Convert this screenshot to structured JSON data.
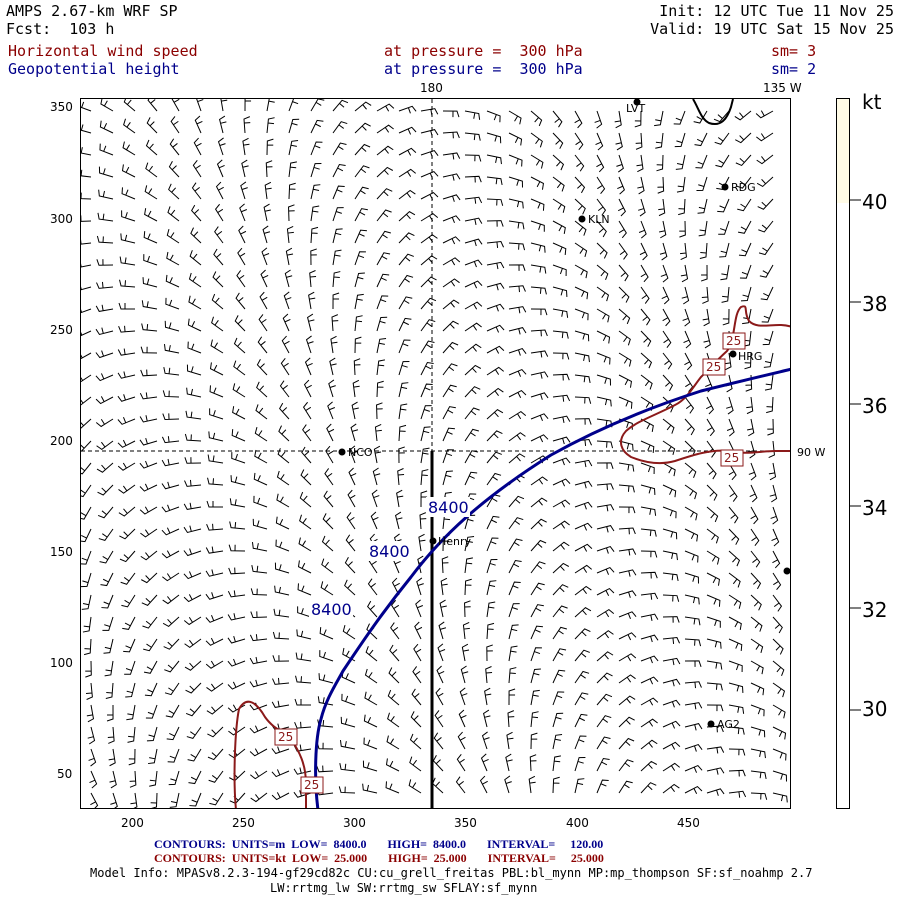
{
  "header": {
    "model": "AMPS 2.67-km WRF SP",
    "forecast": "Fcst:  103 h",
    "init": "Init: 12 UTC Tue 11 Nov 25",
    "valid": "Valid: 19 UTC Sat 15 Nov 25",
    "field1_name": "Horizontal wind speed",
    "field1_level": "at pressure =  300 hPa",
    "field1_sm": "sm= 3",
    "field2_name": "Geopotential height",
    "field2_level": "at pressure =  300 hPa",
    "field2_sm": "sm= 2"
  },
  "map": {
    "meridian_180": "180",
    "meridian_135w": "135 W",
    "meridian_90w": "90 W",
    "x_ticks": [
      "200",
      "250",
      "300",
      "350",
      "400",
      "450"
    ],
    "y_ticks": [
      "350",
      "300",
      "250",
      "200",
      "150",
      "100",
      "50"
    ],
    "stations": [
      {
        "label": "LVT",
        "dot": true
      },
      {
        "label": "RDG",
        "dot": true
      },
      {
        "label": "KLN",
        "dot": true
      },
      {
        "label": "HRG",
        "dot": true
      },
      {
        "label": "NCO",
        "dot": true
      },
      {
        "label": "Henry",
        "dot": true
      },
      {
        "label": "AG2",
        "dot": true
      },
      {
        "label": "",
        "dot": true
      }
    ],
    "height_contour_label": "8400",
    "speed_contour_label": "25",
    "height_contour_color": "#00008b",
    "speed_contour_color": "#8b1a1a"
  },
  "colorbar": {
    "unit": "kt",
    "ticks": [
      "40",
      "38",
      "36",
      "34",
      "32",
      "30"
    ],
    "fill_color": "#fffbe6",
    "filled_above_value": 40
  },
  "footer": {
    "contours1": "CONTOURS:  UNITS=m  LOW=  8400.0       HIGH=  8400.0       INTERVAL=     120.00",
    "contours2": "CONTOURS:  UNITS=kt  LOW=  25.000       HIGH=  25.000       INTERVAL=     25.000",
    "model_info": "Model Info: MPASv8.2.3-194-gf29cd82c CU:cu_grell_freitas PBL:bl_mynn MP:mp_thompson SF:sf_noahmp 2.7",
    "model_info2": "LW:rrtmg_lw SW:rrtmg_sw SFLAY:sf_mynn"
  }
}
